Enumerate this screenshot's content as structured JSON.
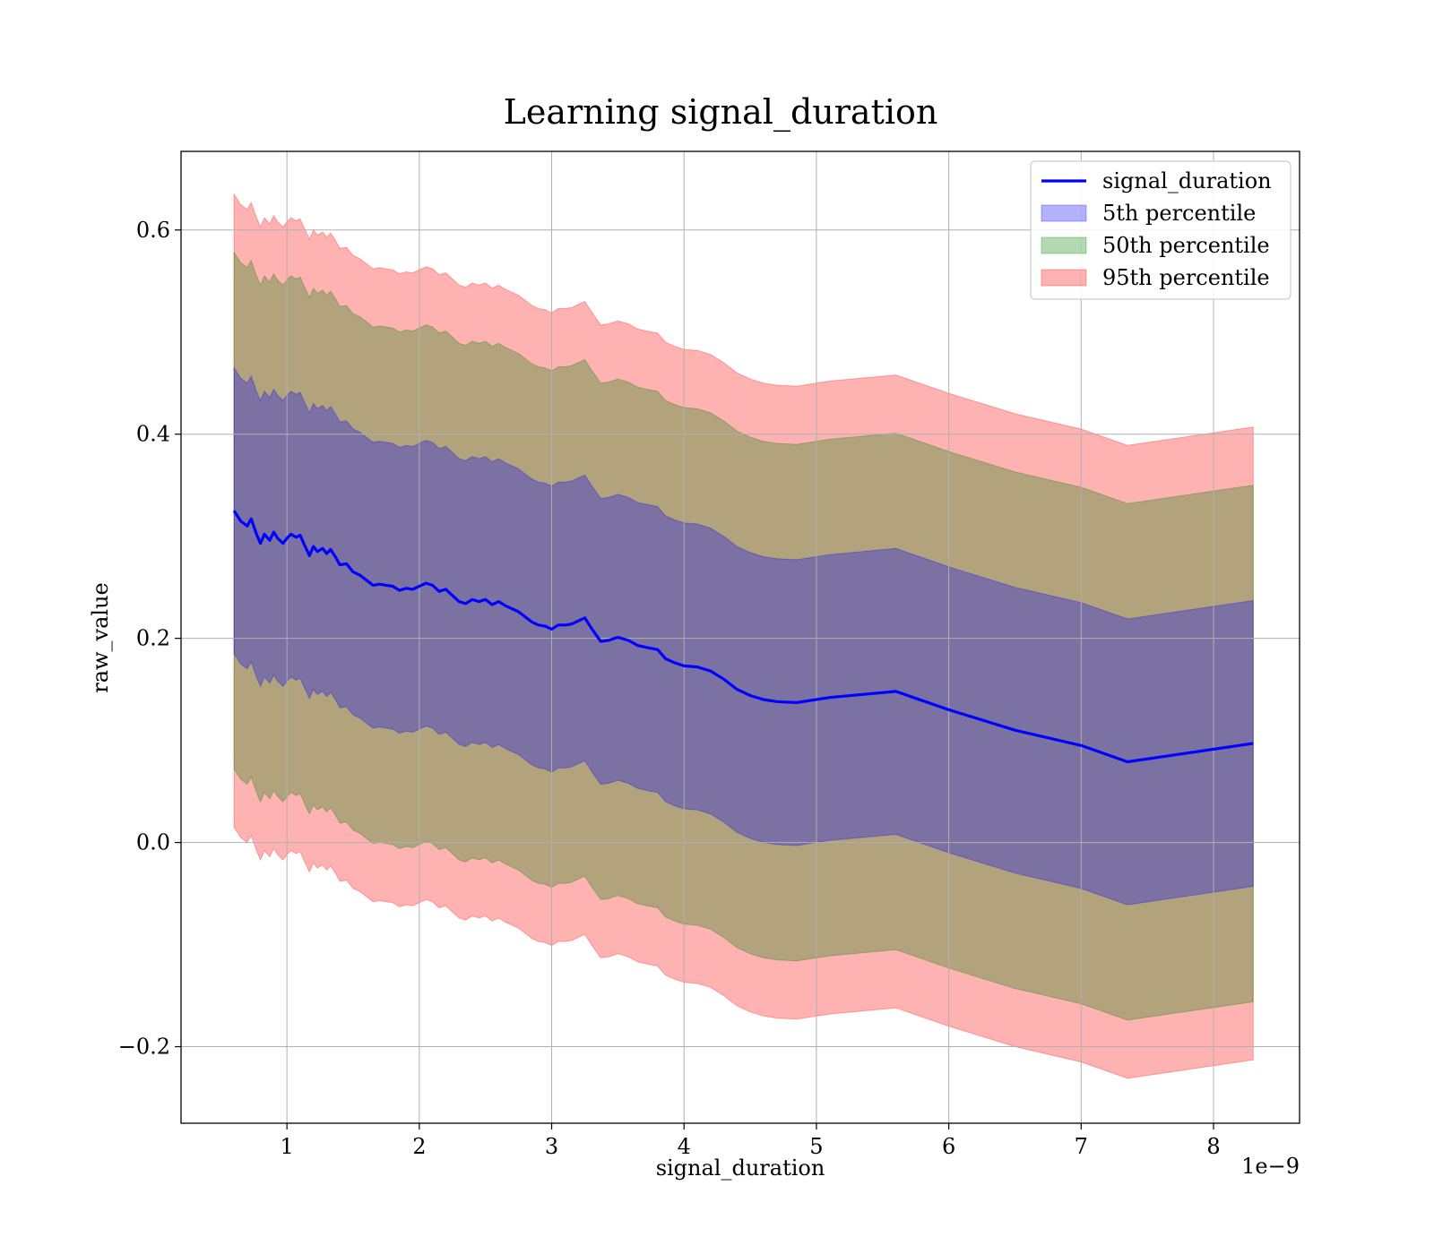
{
  "chart_data": {
    "type": "line",
    "title": "Learning signal_duration",
    "xlabel": "signal_duration",
    "ylabel": "raw_value",
    "x_offset_text": "1e−9",
    "xlim": [
      0.2,
      8.65
    ],
    "ylim": [
      -0.275,
      0.677
    ],
    "xticks": [
      1,
      2,
      3,
      4,
      5,
      6,
      7,
      8
    ],
    "xtick_labels": [
      "1",
      "2",
      "3",
      "4",
      "5",
      "6",
      "7",
      "8"
    ],
    "yticks": [
      -0.2,
      0.0,
      0.2,
      0.4,
      0.6
    ],
    "ytick_labels": [
      "−0.2",
      "0.0",
      "0.2",
      "0.4",
      "0.6"
    ],
    "grid": true,
    "legend_position": "top-right",
    "x": [
      0.6,
      0.65,
      0.7,
      0.73,
      0.77,
      0.8,
      0.83,
      0.87,
      0.9,
      0.93,
      0.97,
      1.0,
      1.03,
      1.07,
      1.1,
      1.13,
      1.17,
      1.2,
      1.23,
      1.27,
      1.3,
      1.33,
      1.37,
      1.4,
      1.45,
      1.5,
      1.55,
      1.6,
      1.65,
      1.7,
      1.75,
      1.8,
      1.85,
      1.9,
      1.95,
      2.0,
      2.05,
      2.1,
      2.15,
      2.2,
      2.25,
      2.3,
      2.35,
      2.4,
      2.45,
      2.5,
      2.55,
      2.6,
      2.65,
      2.7,
      2.75,
      2.8,
      2.85,
      2.9,
      2.95,
      3.0,
      3.05,
      3.1,
      3.15,
      3.2,
      3.25,
      3.3,
      3.37,
      3.43,
      3.5,
      3.58,
      3.65,
      3.72,
      3.8,
      3.86,
      3.93,
      4.0,
      4.1,
      4.2,
      4.3,
      4.4,
      4.5,
      4.6,
      4.7,
      4.85,
      5.1,
      5.6,
      6.0,
      6.5,
      7.0,
      7.35,
      8.3
    ],
    "series": [
      {
        "name": "signal_duration",
        "color": "#0000ff",
        "values": [
          0.325,
          0.315,
          0.31,
          0.317,
          0.302,
          0.293,
          0.302,
          0.296,
          0.304,
          0.298,
          0.293,
          0.298,
          0.302,
          0.299,
          0.301,
          0.292,
          0.281,
          0.29,
          0.285,
          0.288,
          0.283,
          0.287,
          0.279,
          0.272,
          0.273,
          0.265,
          0.262,
          0.257,
          0.252,
          0.253,
          0.252,
          0.251,
          0.247,
          0.249,
          0.248,
          0.251,
          0.254,
          0.252,
          0.246,
          0.248,
          0.242,
          0.236,
          0.234,
          0.238,
          0.236,
          0.238,
          0.233,
          0.236,
          0.232,
          0.229,
          0.226,
          0.221,
          0.216,
          0.213,
          0.212,
          0.209,
          0.213,
          0.213,
          0.214,
          0.217,
          0.22,
          0.21,
          0.197,
          0.198,
          0.201,
          0.198,
          0.193,
          0.191,
          0.189,
          0.18,
          0.176,
          0.173,
          0.172,
          0.168,
          0.16,
          0.15,
          0.144,
          0.14,
          0.138,
          0.137,
          0.142,
          0.148,
          0.13,
          0.11,
          0.095,
          0.079,
          0.097
        ]
      },
      {
        "name": "5th percentile",
        "color": "#0000ff",
        "half_width": 0.14
      },
      {
        "name": "50th percentile",
        "color": "#008000",
        "half_width": 0.253
      },
      {
        "name": "95th percentile",
        "color": "#ff0000",
        "half_width": 0.31
      }
    ]
  }
}
